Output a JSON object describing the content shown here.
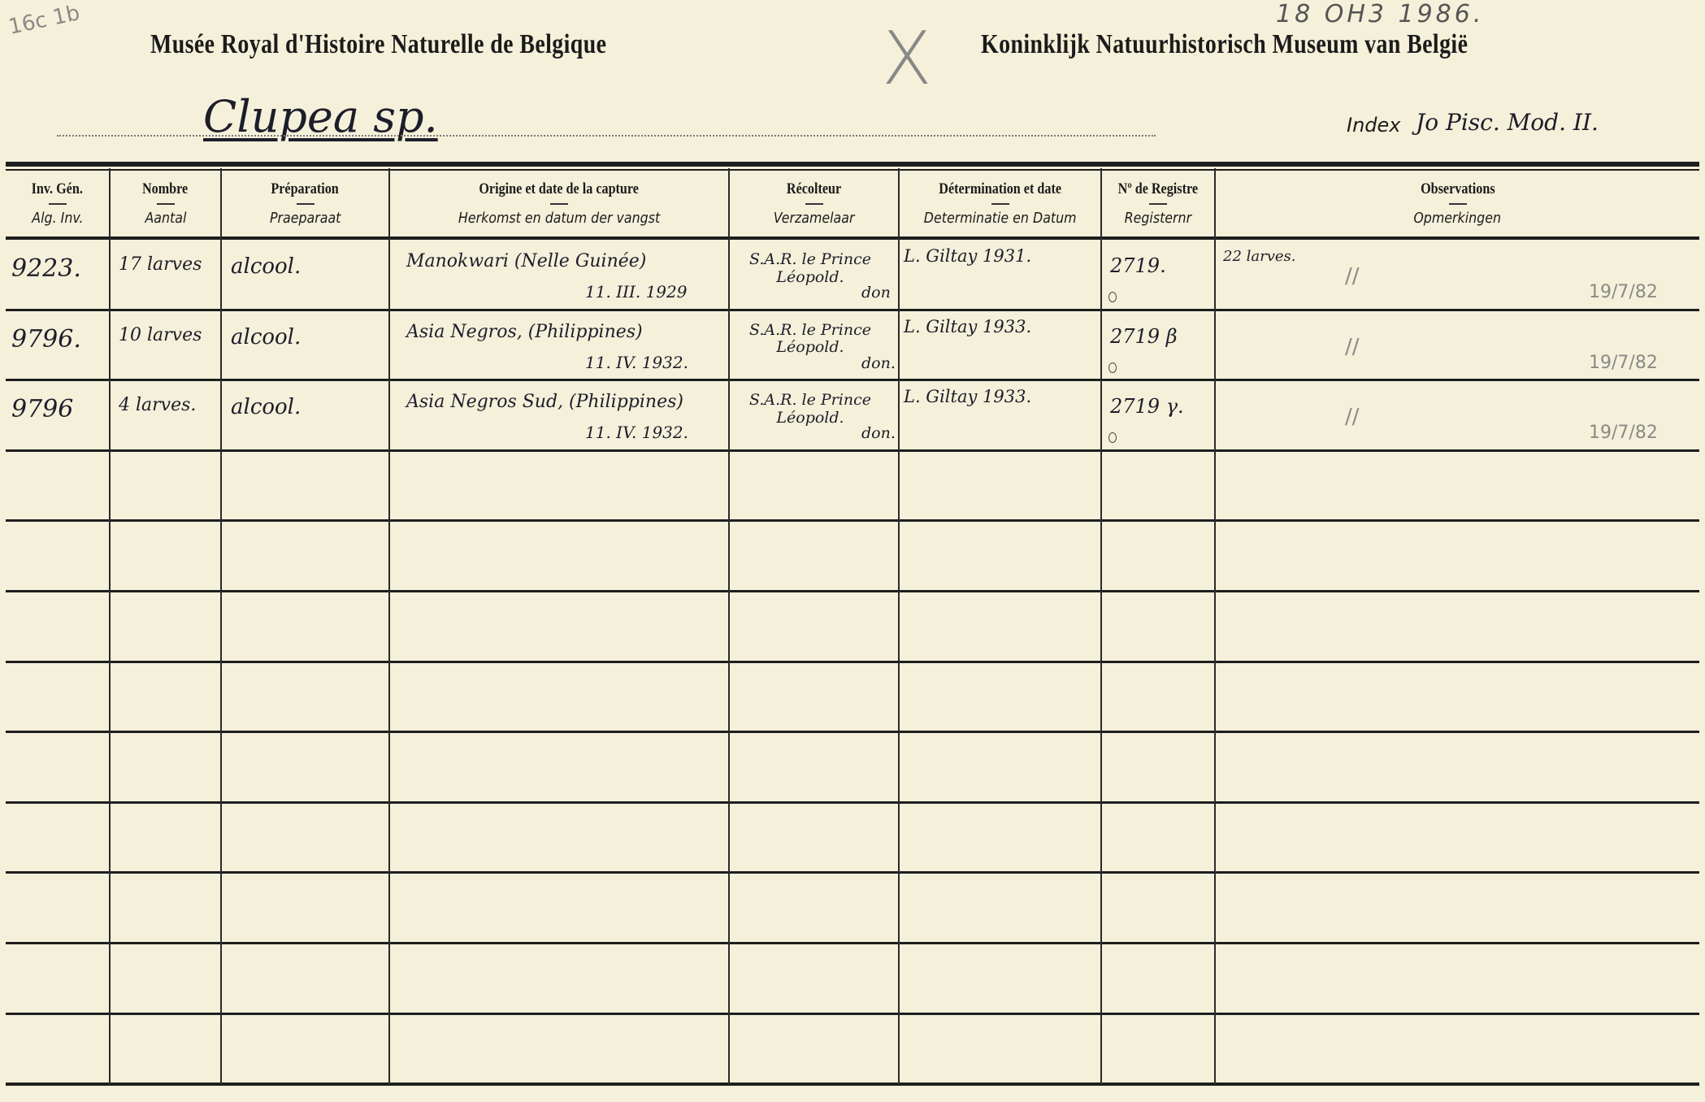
{
  "card": {
    "corner_note": "16c 1b",
    "stamp_date": "18 OH3 1986.",
    "mark": "X",
    "title_fr": "Musée Royal d'Histoire Naturelle de Belgique",
    "title_nl": "Koninklijk Natuurhistorisch Museum van België",
    "species": "Clupea sp.",
    "index_label": "Index",
    "index_value": "Jo Pisc. Mod. II."
  },
  "columns": [
    {
      "fr": "Inv. Gén.",
      "nl": "Alg. Inv."
    },
    {
      "fr": "Nombre",
      "nl": "Aantal"
    },
    {
      "fr": "Préparation",
      "nl": "Praeparaat"
    },
    {
      "fr": "Origine et date de la capture",
      "nl": "Herkomst en datum der vangst"
    },
    {
      "fr": "Récolteur",
      "nl": "Verzamelaar"
    },
    {
      "fr": "Détermination et date",
      "nl": "Determinatie en Datum"
    },
    {
      "fr": "Nº de Registre",
      "nl": "Registernr"
    },
    {
      "fr": "Observations",
      "nl": "Opmerkingen"
    }
  ],
  "rows": [
    {
      "inv": "9223.",
      "nombre": "17 larves",
      "prep": "alcool.",
      "origine": "Manokwari (Nelle Guinée)",
      "date": "11. III. 1929",
      "recolteur": "S.A.R. le Prince Léopold.",
      "don": "don",
      "determination": "L. Giltay 1931.",
      "registre": "2719.",
      "obs": "22 larves.",
      "pencil_mark": "//",
      "pencil_date": "19/7/82"
    },
    {
      "inv": "9796.",
      "nombre": "10 larves",
      "prep": "alcool.",
      "origine": "Asia Negros, (Philippines)",
      "date": "11. IV. 1932.",
      "recolteur": "S.A.R. le Prince Léopold.",
      "don": "don.",
      "determination": "L. Giltay 1933.",
      "registre": "2719 β",
      "obs": "",
      "pencil_mark": "//",
      "pencil_date": "19/7/82"
    },
    {
      "inv": "9796",
      "nombre": "4 larves.",
      "prep": "alcool.",
      "origine": "Asia Negros Sud, (Philippines)",
      "date": "11. IV. 1932.",
      "recolteur": "S.A.R. le Prince Léopold.",
      "don": "don.",
      "determination": "L. Giltay 1933.",
      "registre": "2719 γ.",
      "obs": "",
      "pencil_mark": "//",
      "pencil_date": "19/7/82"
    }
  ]
}
